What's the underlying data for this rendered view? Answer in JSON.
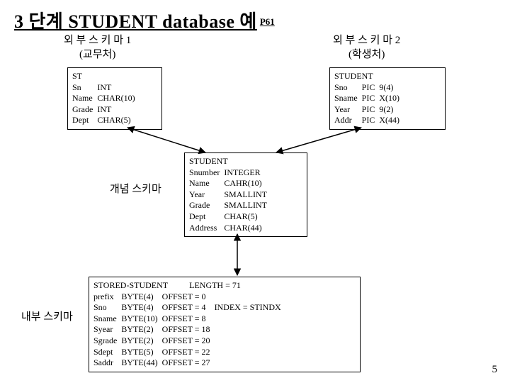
{
  "title_main": "3 단계 STUDENT database 예",
  "title_suffix": "P61",
  "ext1_header_l1": "외 부 스 키 마  1",
  "ext1_header_l2": "(교무처)",
  "ext2_header_l1": "외 부 스 키 마  2",
  "ext2_header_l2": "(학생처)",
  "conceptual_label": "개념 스키마",
  "internal_label": "내부 스키마",
  "page_number": "5",
  "box1": {
    "name": "ST",
    "rows": [
      [
        "Sn",
        "INT"
      ],
      [
        "Name",
        "CHAR(10)"
      ],
      [
        "Grade",
        "INT"
      ],
      [
        "Dept",
        "CHAR(5)"
      ]
    ]
  },
  "box2": {
    "name": "STUDENT",
    "rows": [
      [
        "Sno",
        "PIC",
        "9(4)"
      ],
      [
        "Sname",
        "PIC",
        "X(10)"
      ],
      [
        "Year",
        "PIC",
        "9(2)"
      ],
      [
        "Addr",
        "PIC",
        "X(44)"
      ]
    ]
  },
  "box3": {
    "name": "STUDENT",
    "rows": [
      [
        "Snumber",
        "INTEGER"
      ],
      [
        "Name",
        "CAHR(10)"
      ],
      [
        "Year",
        "SMALLINT"
      ],
      [
        "Grade",
        "SMALLINT"
      ],
      [
        "Dept",
        "CHAR(5)"
      ],
      [
        "Address",
        "CHAR(44)"
      ]
    ]
  },
  "box4": {
    "name": "STORED-STUDENT",
    "len": "LENGTH = 71",
    "rows": [
      [
        "prefix",
        "BYTE(4)",
        "OFFSET = 0"
      ],
      [
        "Sno",
        "BYTE(4)",
        "OFFSET = 4",
        "INDEX = STINDX"
      ],
      [
        "Sname",
        "BYTE(10)",
        "OFFSET = 8"
      ],
      [
        "Syear",
        "BYTE(2)",
        "OFFSET = 18"
      ],
      [
        "Sgrade",
        "BYTE(2)",
        "OFFSET = 20"
      ],
      [
        "Sdept",
        "BYTE(5)",
        "OFFSET = 22"
      ],
      [
        "Saddr",
        "BYTE(44)",
        "OFFSET = 27"
      ]
    ]
  },
  "colors": {
    "line": "#000000"
  }
}
